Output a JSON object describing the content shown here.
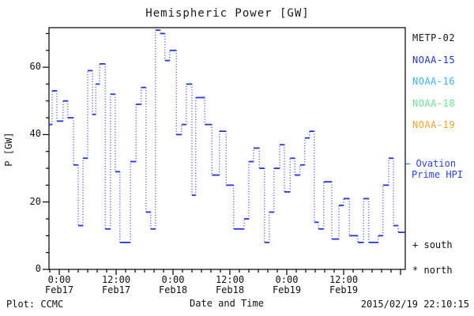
{
  "title": "Hemispheric Power [GW]",
  "y_axis": {
    "label": "P [GW]",
    "ticks": [
      0,
      20,
      40,
      60
    ],
    "minor_step": 5,
    "minor_max": 70
  },
  "x_axis": {
    "label": "Date and Time",
    "ticks": [
      {
        "hours": 0,
        "time": "0:00",
        "date": "Feb17"
      },
      {
        "hours": 12,
        "time": "12:00",
        "date": "Feb17"
      },
      {
        "hours": 24,
        "time": "0:00",
        "date": "Feb18"
      },
      {
        "hours": 36,
        "time": "12:00",
        "date": "Feb18"
      },
      {
        "hours": 48,
        "time": "0:00",
        "date": "Feb19"
      },
      {
        "hours": 60,
        "time": "12:00",
        "date": "Feb19"
      }
    ],
    "unlabeled_major_hours": [
      72
    ],
    "minor_step_hours": 2
  },
  "legend": {
    "satellites": [
      {
        "label": "METP-02",
        "color": "#1a1a1a"
      },
      {
        "label": "NOAA-15",
        "color": "#2233dd"
      },
      {
        "label": "NOAA-16",
        "color": "#35b5f5"
      },
      {
        "label": "NOAA-18",
        "color": "#66e690"
      },
      {
        "label": "NOAA-19",
        "color": "#f7a428"
      }
    ],
    "ovation": {
      "dash": "—",
      "line1": "Ovation",
      "line2": "Prime HPI",
      "color": "#2a44ee"
    },
    "markers": [
      {
        "symbol": "+",
        "label": "south"
      },
      {
        "symbol": "*",
        "label": "north"
      }
    ]
  },
  "footer": {
    "left": "Plot: CCMC",
    "right": "2015/02/19 22:10:15"
  },
  "chart_data": {
    "type": "line",
    "style": "step-histogram-dotted",
    "series_name": "Ovation Prime HPI",
    "units": "GW",
    "time_origin": "2015-02-17 00:00",
    "xlim_hours": [
      -2.17,
      73.0
    ],
    "ylim": [
      0,
      71.7
    ],
    "line_color": "#2236dd",
    "t_start_hours": [
      -2.2,
      -1.5,
      -0.5,
      0.8,
      1.8,
      3.0,
      4.0,
      5.0,
      6.0,
      7.0,
      7.7,
      8.5,
      9.7,
      10.8,
      11.8,
      12.8,
      15.0,
      16.2,
      17.3,
      18.3,
      19.3,
      20.3,
      21.3,
      22.3,
      23.3,
      24.7,
      25.8,
      26.8,
      28.0,
      28.8,
      30.7,
      32.2,
      33.8,
      35.2,
      36.8,
      39.0,
      40.0,
      41.0,
      42.2,
      43.3,
      44.3,
      45.3,
      46.5,
      47.5,
      48.7,
      49.7,
      50.8,
      51.8,
      52.8,
      53.8,
      54.7,
      55.8,
      57.5,
      59.0,
      60.0,
      61.2,
      63.0,
      64.2,
      65.3,
      67.3,
      68.3,
      69.5,
      70.5,
      71.5
    ],
    "t_end_hours": 73.0,
    "p_gw": [
      43,
      53,
      44,
      50,
      45,
      31,
      13,
      33,
      59,
      46,
      55,
      61,
      12,
      52,
      29,
      8,
      32,
      49,
      54,
      17,
      12,
      71,
      70,
      62,
      65,
      40,
      43,
      55,
      22,
      51,
      43,
      28,
      41,
      25,
      12,
      15,
      32,
      36,
      30,
      8,
      17,
      30,
      37,
      23,
      33,
      28,
      31,
      39,
      41,
      14,
      12,
      26,
      9,
      19,
      21,
      10,
      8,
      21,
      8,
      10,
      25,
      33,
      13,
      11
    ]
  }
}
